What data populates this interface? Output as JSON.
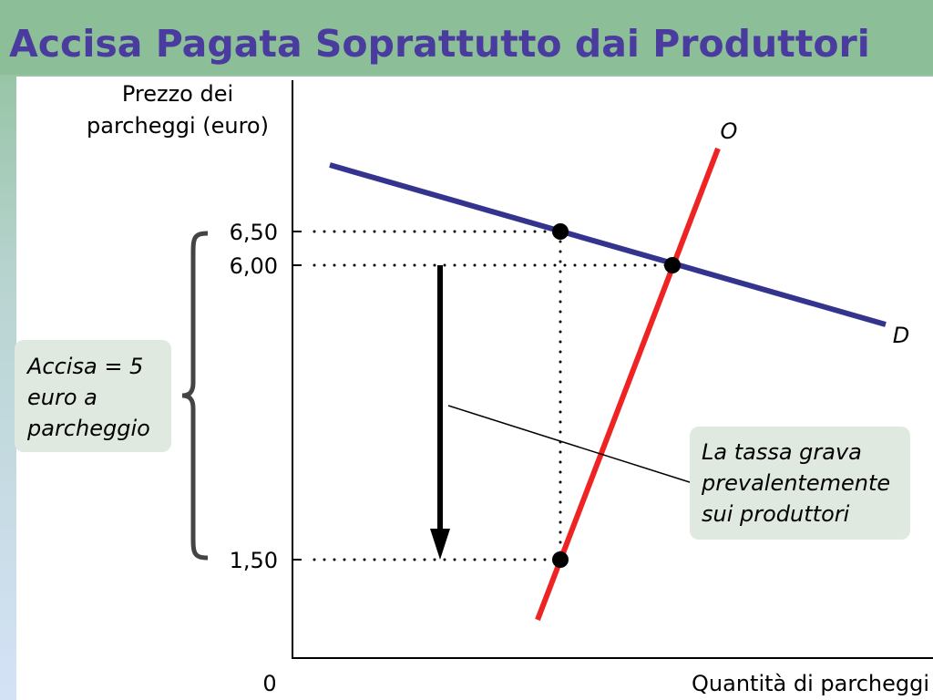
{
  "header": {
    "title": "Accisa Pagata Soprattutto dai Produttori"
  },
  "diagram": {
    "y_axis_label": [
      "Prezzo dei",
      "parcheggi (euro)"
    ],
    "x_axis_label": "Quantità di parcheggi",
    "origin_label": "0",
    "price_labels": [
      "6,50",
      "6,00",
      "1,50"
    ],
    "supply_label": "O",
    "demand_label": "D",
    "tax_box": [
      "Accisa = 5",
      "euro a",
      "parcheggio"
    ],
    "note_box": [
      "La tassa grava",
      "prevalentemente",
      "sui produttori"
    ]
  }
}
